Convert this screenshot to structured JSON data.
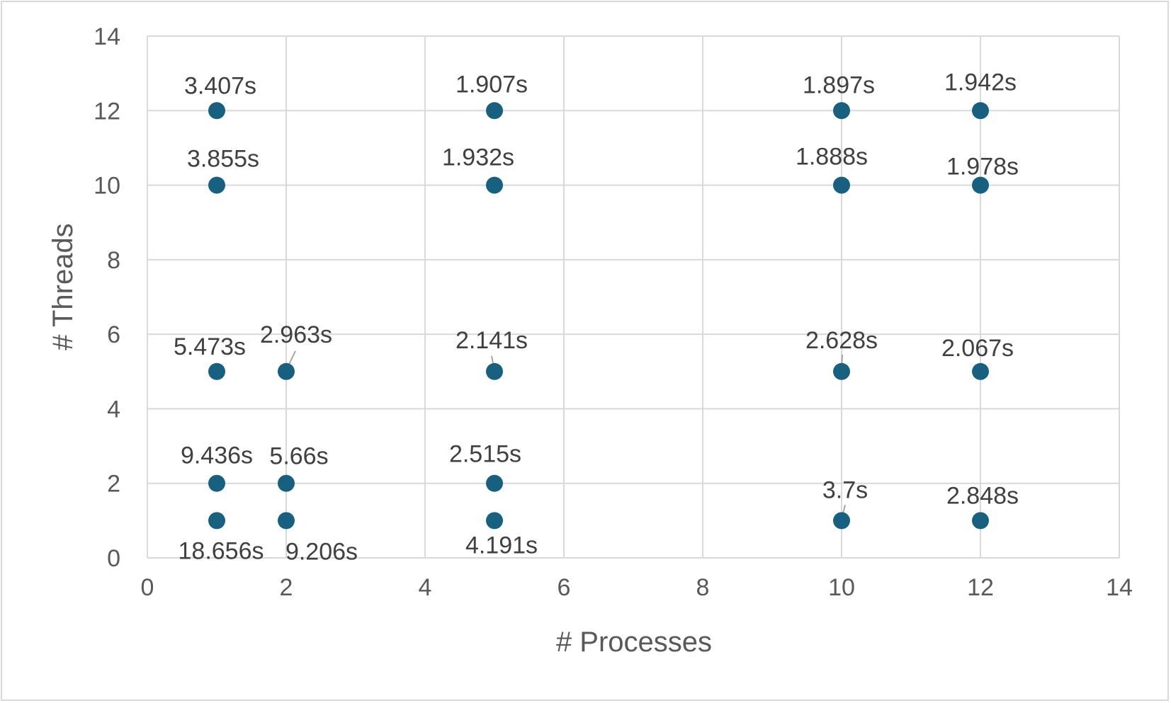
{
  "chart_data": {
    "type": "scatter",
    "title": "",
    "xlabel": "# Processes",
    "ylabel": "# Threads",
    "xlim": [
      0,
      14
    ],
    "ylim": [
      0,
      14
    ],
    "x_ticks": [
      "0",
      "2",
      "4",
      "6",
      "8",
      "10",
      "12",
      "14"
    ],
    "y_ticks": [
      "0",
      "2",
      "4",
      "6",
      "8",
      "10",
      "12",
      "14"
    ],
    "grid": true,
    "legend": "none",
    "marker_color": "#17607f",
    "points": [
      {
        "x": 1,
        "y": 12,
        "label": "3.407s"
      },
      {
        "x": 1,
        "y": 10,
        "label": "3.855s"
      },
      {
        "x": 1,
        "y": 5,
        "label": "5.473s"
      },
      {
        "x": 1,
        "y": 2,
        "label": "9.436s"
      },
      {
        "x": 1,
        "y": 1,
        "label": "18.656s"
      },
      {
        "x": 2,
        "y": 5,
        "label": "2.963s"
      },
      {
        "x": 2,
        "y": 2,
        "label": "5.66s"
      },
      {
        "x": 2,
        "y": 1,
        "label": "9.206s"
      },
      {
        "x": 5,
        "y": 12,
        "label": "1.907s"
      },
      {
        "x": 5,
        "y": 10,
        "label": "1.932s"
      },
      {
        "x": 5,
        "y": 5,
        "label": "2.141s"
      },
      {
        "x": 5,
        "y": 2,
        "label": "2.515s"
      },
      {
        "x": 5,
        "y": 1,
        "label": "4.191s"
      },
      {
        "x": 10,
        "y": 12,
        "label": "1.897s"
      },
      {
        "x": 10,
        "y": 10,
        "label": "1.888s"
      },
      {
        "x": 10,
        "y": 5,
        "label": "2.628s"
      },
      {
        "x": 10,
        "y": 1,
        "label": "3.7s"
      },
      {
        "x": 12,
        "y": 12,
        "label": "1.942s"
      },
      {
        "x": 12,
        "y": 10,
        "label": "1.978s"
      },
      {
        "x": 12,
        "y": 5,
        "label": "2.067s"
      },
      {
        "x": 12,
        "y": 1,
        "label": "2.848s"
      }
    ]
  }
}
